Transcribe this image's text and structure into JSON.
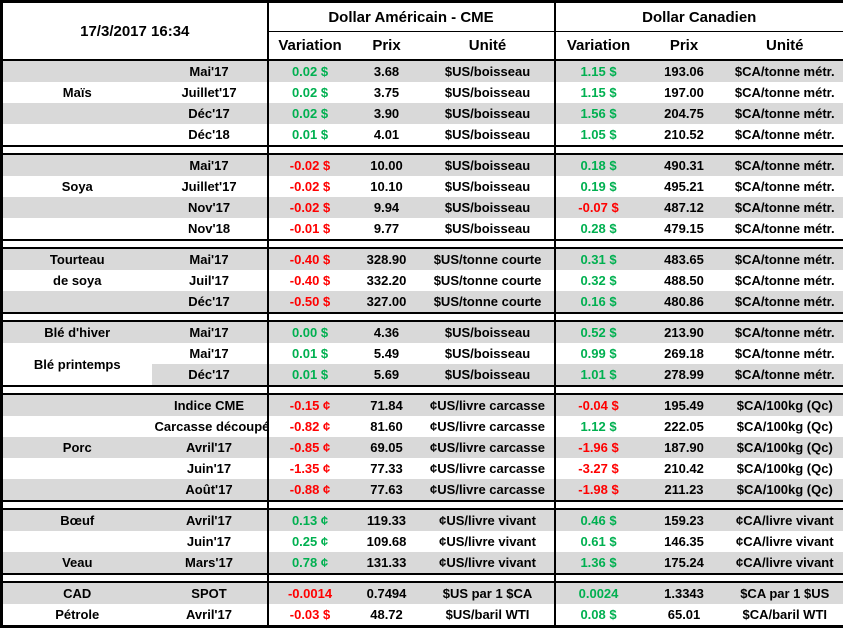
{
  "meta": {
    "timestamp": "17/3/2017 16:34"
  },
  "colors": {
    "positive": "#00B050",
    "negative": "#FF0000",
    "row_stripe": "#D9D9D9",
    "border": "#000000"
  },
  "header": {
    "us_title": "Dollar Américain - CME",
    "ca_title": "Dollar Canadien",
    "variation": "Variation",
    "prix": "Prix",
    "unite": "Unité"
  },
  "sections": [
    {
      "id": "mais",
      "rows": [
        {
          "label": "",
          "month": "Mai'17",
          "us_var": "0.02 $",
          "us_dir": "up",
          "us_prix": "3.68",
          "us_unit": "$US/boisseau",
          "ca_var": "1.15 $",
          "ca_dir": "up",
          "ca_prix": "193.06",
          "ca_unit": "$CA/tonne métr."
        },
        {
          "label": "Maïs",
          "month": "Juillet'17",
          "us_var": "0.02 $",
          "us_dir": "up",
          "us_prix": "3.75",
          "us_unit": "$US/boisseau",
          "ca_var": "1.15 $",
          "ca_dir": "up",
          "ca_prix": "197.00",
          "ca_unit": "$CA/tonne métr."
        },
        {
          "label": "",
          "month": "Déc'17",
          "us_var": "0.02 $",
          "us_dir": "up",
          "us_prix": "3.90",
          "us_unit": "$US/boisseau",
          "ca_var": "1.56 $",
          "ca_dir": "up",
          "ca_prix": "204.75",
          "ca_unit": "$CA/tonne métr."
        },
        {
          "label": "",
          "month": "Déc'18",
          "us_var": "0.01 $",
          "us_dir": "up",
          "us_prix": "4.01",
          "us_unit": "$US/boisseau",
          "ca_var": "1.05 $",
          "ca_dir": "up",
          "ca_prix": "210.52",
          "ca_unit": "$CA/tonne métr."
        }
      ]
    },
    {
      "id": "soya",
      "rows": [
        {
          "label": "",
          "month": "Mai'17",
          "us_var": "-0.02 $",
          "us_dir": "down",
          "us_prix": "10.00",
          "us_unit": "$US/boisseau",
          "ca_var": "0.18 $",
          "ca_dir": "up",
          "ca_prix": "490.31",
          "ca_unit": "$CA/tonne métr."
        },
        {
          "label": "Soya",
          "month": "Juillet'17",
          "us_var": "-0.02 $",
          "us_dir": "down",
          "us_prix": "10.10",
          "us_unit": "$US/boisseau",
          "ca_var": "0.19 $",
          "ca_dir": "up",
          "ca_prix": "495.21",
          "ca_unit": "$CA/tonne métr."
        },
        {
          "label": "",
          "month": "Nov'17",
          "us_var": "-0.02 $",
          "us_dir": "down",
          "us_prix": "9.94",
          "us_unit": "$US/boisseau",
          "ca_var": "-0.07 $",
          "ca_dir": "down",
          "ca_prix": "487.12",
          "ca_unit": "$CA/tonne métr."
        },
        {
          "label": "",
          "month": "Nov'18",
          "us_var": "-0.01 $",
          "us_dir": "down",
          "us_prix": "9.77",
          "us_unit": "$US/boisseau",
          "ca_var": "0.28 $",
          "ca_dir": "up",
          "ca_prix": "479.15",
          "ca_unit": "$CA/tonne métr."
        }
      ]
    },
    {
      "id": "tourteau",
      "rows": [
        {
          "label": "Tourteau",
          "month": "Mai'17",
          "us_var": "-0.40 $",
          "us_dir": "down",
          "us_prix": "328.90",
          "us_unit": "$US/tonne courte",
          "ca_var": "0.31 $",
          "ca_dir": "up",
          "ca_prix": "483.65",
          "ca_unit": "$CA/tonne métr."
        },
        {
          "label": "de soya",
          "month": "Juil'17",
          "us_var": "-0.40 $",
          "us_dir": "down",
          "us_prix": "332.20",
          "us_unit": "$US/tonne courte",
          "ca_var": "0.32 $",
          "ca_dir": "up",
          "ca_prix": "488.50",
          "ca_unit": "$CA/tonne métr."
        },
        {
          "label": "",
          "month": "Déc'17",
          "us_var": "-0.50 $",
          "us_dir": "down",
          "us_prix": "327.00",
          "us_unit": "$US/tonne courte",
          "ca_var": "0.16 $",
          "ca_dir": "up",
          "ca_prix": "480.86",
          "ca_unit": "$CA/tonne métr."
        }
      ]
    },
    {
      "id": "ble",
      "rows": [
        {
          "label": "Blé d'hiver",
          "month": "Mai'17",
          "us_var": "0.00 $",
          "us_dir": "up",
          "us_prix": "4.36",
          "us_unit": "$US/boisseau",
          "ca_var": "0.52 $",
          "ca_dir": "up",
          "ca_prix": "213.90",
          "ca_unit": "$CA/tonne métr."
        },
        {
          "label": "Blé printemps",
          "label_rowspan": 2,
          "month": "Mai'17",
          "us_var": "0.01 $",
          "us_dir": "up",
          "us_prix": "5.49",
          "us_unit": "$US/boisseau",
          "ca_var": "0.99 $",
          "ca_dir": "up",
          "ca_prix": "269.18",
          "ca_unit": "$CA/tonne métr."
        },
        {
          "label_covered": true,
          "month": "Déc'17",
          "us_var": "0.01 $",
          "us_dir": "up",
          "us_prix": "5.69",
          "us_unit": "$US/boisseau",
          "ca_var": "1.01 $",
          "ca_dir": "up",
          "ca_prix": "278.99",
          "ca_unit": "$CA/tonne métr."
        }
      ]
    },
    {
      "id": "porc",
      "rows": [
        {
          "label": "",
          "month": "Indice CME",
          "us_var": "-0.15 ¢",
          "us_dir": "down",
          "us_prix": "71.84",
          "us_unit": "¢US/livre carcasse",
          "ca_var": "-0.04 $",
          "ca_dir": "down",
          "ca_prix": "195.49",
          "ca_unit": "$CA/100kg (Qc)"
        },
        {
          "label": "",
          "month": "Carcasse découpée",
          "month_small": true,
          "us_var": "-0.82 ¢",
          "us_dir": "down",
          "us_prix": "81.60",
          "us_unit": "¢US/livre carcasse",
          "ca_var": "1.12 $",
          "ca_dir": "up",
          "ca_prix": "222.05",
          "ca_unit": "$CA/100kg (Qc)"
        },
        {
          "label": "Porc",
          "month": "Avril'17",
          "us_var": "-0.85 ¢",
          "us_dir": "down",
          "us_prix": "69.05",
          "us_unit": "¢US/livre carcasse",
          "ca_var": "-1.96 $",
          "ca_dir": "down",
          "ca_prix": "187.90",
          "ca_unit": "$CA/100kg (Qc)"
        },
        {
          "label": "",
          "month": "Juin'17",
          "us_var": "-1.35 ¢",
          "us_dir": "down",
          "us_prix": "77.33",
          "us_unit": "¢US/livre carcasse",
          "ca_var": "-3.27 $",
          "ca_dir": "down",
          "ca_prix": "210.42",
          "ca_unit": "$CA/100kg (Qc)"
        },
        {
          "label": "",
          "month": "Août'17",
          "us_var": "-0.88 ¢",
          "us_dir": "down",
          "us_prix": "77.63",
          "us_unit": "¢US/livre carcasse",
          "ca_var": "-1.98 $",
          "ca_dir": "down",
          "ca_prix": "211.23",
          "ca_unit": "$CA/100kg (Qc)"
        }
      ]
    },
    {
      "id": "boeuf-veau",
      "rows": [
        {
          "label": "Bœuf",
          "month": "Avril'17",
          "us_var": "0.13 ¢",
          "us_dir": "up",
          "us_prix": "119.33",
          "us_unit": "¢US/livre vivant",
          "ca_var": "0.46 $",
          "ca_dir": "up",
          "ca_prix": "159.23",
          "ca_unit": "¢CA/livre vivant"
        },
        {
          "label": "",
          "month": "Juin'17",
          "us_var": "0.25 ¢",
          "us_dir": "up",
          "us_prix": "109.68",
          "us_unit": "¢US/livre vivant",
          "ca_var": "0.61 $",
          "ca_dir": "up",
          "ca_prix": "146.35",
          "ca_unit": "¢CA/livre vivant"
        },
        {
          "label": "Veau",
          "month": "Mars'17",
          "us_var": "0.78 ¢",
          "us_dir": "up",
          "us_prix": "131.33",
          "us_unit": "¢US/livre vivant",
          "ca_var": "1.36 $",
          "ca_dir": "up",
          "ca_prix": "175.24",
          "ca_unit": "¢CA/livre vivant"
        }
      ]
    },
    {
      "id": "cad-petrole",
      "rows": [
        {
          "label": "CAD",
          "month": "SPOT",
          "us_var": "-0.0014",
          "us_dir": "down",
          "us_prix": "0.7494",
          "us_unit": "$US par 1 $CA",
          "ca_var": "0.0024",
          "ca_dir": "up",
          "ca_prix": "1.3343",
          "ca_unit": "$CA par 1 $US"
        },
        {
          "label": "Pétrole",
          "month": "Avril'17",
          "us_var": "-0.03 $",
          "us_dir": "down",
          "us_prix": "48.72",
          "us_unit": "$US/baril WTI",
          "ca_var": "0.08 $",
          "ca_dir": "up",
          "ca_prix": "65.01",
          "ca_unit": "$CA/baril WTI"
        }
      ]
    }
  ]
}
